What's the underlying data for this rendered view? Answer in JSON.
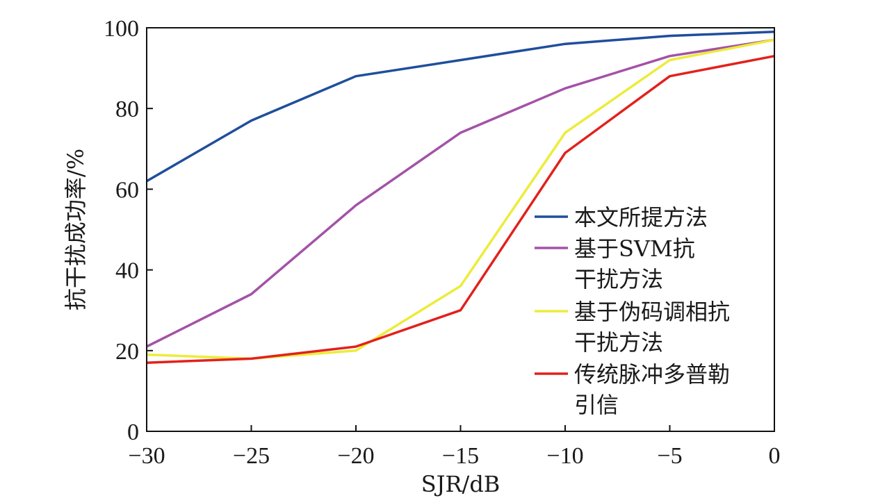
{
  "chart_data": {
    "type": "line",
    "xlabel": "SJR/dB",
    "ylabel": "抗干扰成功率/%",
    "xlim": [
      -30,
      0
    ],
    "ylim": [
      0,
      100
    ],
    "x_ticks": [
      -30,
      -25,
      -20,
      -15,
      -10,
      -5,
      0
    ],
    "x_tick_labels": [
      "−30",
      "−25",
      "−20",
      "−15",
      "−10",
      "−5",
      "0"
    ],
    "y_ticks": [
      0,
      20,
      40,
      60,
      80,
      100
    ],
    "y_tick_labels": [
      "0",
      "20",
      "40",
      "60",
      "80",
      "100"
    ],
    "grid": false,
    "legend_position": "lower-right",
    "x": [
      -30,
      -25,
      -20,
      -15,
      -10,
      -5,
      0
    ],
    "series": [
      {
        "name": "本文所提方法",
        "name_lines": [
          "本文所提方法"
        ],
        "color": "#1f4e9c",
        "values": [
          62,
          77,
          88,
          92,
          96,
          98,
          99
        ]
      },
      {
        "name": "基于SVM抗干扰方法",
        "name_lines": [
          "基于SVM抗",
          "干扰方法"
        ],
        "color": "#a352a8",
        "values": [
          21,
          34,
          56,
          74,
          85,
          93,
          97
        ]
      },
      {
        "name": "基于伪码调相抗干扰方法",
        "name_lines": [
          "基于伪码调相抗",
          "干扰方法"
        ],
        "color": "#ecec3a",
        "values": [
          19,
          18,
          20,
          36,
          74,
          92,
          97
        ]
      },
      {
        "name": "传统脉冲多普勒引信",
        "name_lines": [
          "传统脉冲多普勒",
          "引信"
        ],
        "color": "#e2211c",
        "values": [
          17,
          18,
          21,
          30,
          69,
          88,
          93
        ]
      }
    ]
  }
}
